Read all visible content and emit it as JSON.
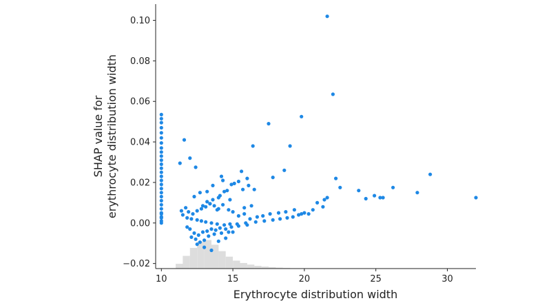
{
  "chart_data": {
    "type": "scatter",
    "xlabel": "Erythrocyte distribution width",
    "ylabel_lines": [
      "SHAP value for",
      "erythrocyte distribution width"
    ],
    "xlim": [
      9.6,
      32.0
    ],
    "ylim": [
      -0.0225,
      0.108
    ],
    "xticks": [
      10,
      15,
      20,
      25,
      30
    ],
    "yticks": [
      -0.02,
      0.0,
      0.02,
      0.04,
      0.06,
      0.08,
      0.1
    ],
    "ytick_labels": [
      "−0.02",
      "0.00",
      "0.02",
      "0.04",
      "0.06",
      "0.08",
      "0.10"
    ],
    "grid": false,
    "colors": {
      "points": "#1E88E5",
      "histogram": "#dddddd",
      "axis": "#222222"
    },
    "histogram": {
      "bin_edges": [
        11.0,
        11.5,
        12.0,
        12.5,
        13.0,
        13.5,
        14.0,
        14.5,
        15.0,
        15.5,
        16.0,
        16.5,
        17.0,
        17.5,
        18.0,
        18.5,
        19.0
      ],
      "heights": [
        0.06,
        0.16,
        0.26,
        0.34,
        0.36,
        0.3,
        0.22,
        0.15,
        0.1,
        0.07,
        0.05,
        0.035,
        0.025,
        0.018,
        0.012,
        0.008
      ]
    },
    "series": [
      {
        "x": [
          10,
          10,
          10,
          10,
          10,
          10,
          10,
          10,
          10,
          10,
          10,
          10,
          10,
          10,
          10,
          10,
          10,
          10,
          10,
          10,
          10,
          10,
          10,
          10,
          10,
          10,
          10,
          10,
          10,
          21.6,
          22.0,
          17.5,
          19.8,
          11.6,
          16.4,
          19.0,
          12.0,
          11.3,
          12.4,
          18.6,
          15.6,
          14.2,
          16.0,
          17.8,
          28.8,
          26.2,
          32.0,
          27.9,
          23.8,
          24.3,
          24.9,
          25.3,
          25.5,
          22.5,
          22.2,
          21.6,
          21.4,
          20.9,
          12.3,
          12.7,
          13.2,
          13.6,
          14.0,
          14.3,
          14.6,
          14.9,
          15.1,
          15.4,
          15.7,
          16.1,
          16.5,
          11.5,
          11.8,
          12.1,
          12.5,
          12.8,
          13.1,
          13.5,
          13.9,
          14.4,
          14.8,
          15.3,
          15.9,
          16.6,
          17.2,
          17.8,
          18.3,
          18.8,
          19.2,
          19.6,
          20.0,
          20.6,
          21.3,
          20.3,
          11.4,
          11.7,
          11.9,
          12.2,
          12.5,
          12.8,
          13.1,
          13.4,
          13.7,
          14.0,
          14.3,
          14.7,
          15.0,
          15.4,
          15.8,
          16.2,
          16.7,
          17.1,
          17.6,
          18.2,
          18.7,
          19.3,
          19.8,
          11.8,
          12.0,
          12.3,
          12.6,
          12.9,
          13.2,
          13.5,
          13.8,
          14.1,
          14.5,
          14.9,
          15.4,
          16.0,
          12.1,
          12.4,
          12.7,
          13.0,
          13.3,
          13.7,
          14.2,
          14.7,
          12.5,
          13.0,
          13.5,
          14.0,
          14.5,
          15.0,
          13.2,
          13.6,
          14.1,
          14.4,
          12.9,
          13.4,
          15.8,
          16.3,
          14.8,
          13.9
        ],
        "y": [
          0.0535,
          0.0515,
          0.0495,
          0.047,
          0.0445,
          0.042,
          0.0395,
          0.037,
          0.035,
          0.033,
          0.031,
          0.029,
          0.027,
          0.025,
          0.023,
          0.021,
          0.019,
          0.017,
          0.015,
          0.013,
          0.011,
          0.009,
          0.007,
          0.005,
          0.003,
          0.001,
          0.0,
          0.0025,
          0.0045,
          0.102,
          0.0635,
          0.049,
          0.0525,
          0.041,
          0.038,
          0.038,
          0.032,
          0.0295,
          0.0275,
          0.026,
          0.0255,
          0.023,
          0.022,
          0.0225,
          0.024,
          0.0175,
          0.0125,
          0.015,
          0.016,
          0.012,
          0.0135,
          0.0125,
          0.0125,
          0.0175,
          0.022,
          0.0125,
          0.0115,
          0.01,
          0.013,
          0.015,
          0.0155,
          0.0185,
          0.0125,
          0.021,
          0.016,
          0.019,
          0.0195,
          0.0205,
          0.0165,
          0.0185,
          0.0165,
          0.004,
          0.0025,
          0.002,
          0.0015,
          0.001,
          0.0005,
          0.0,
          -0.0005,
          -0.001,
          -0.0005,
          -0.0005,
          0.0,
          0.0005,
          0.001,
          0.0015,
          0.002,
          0.0025,
          0.003,
          0.004,
          0.005,
          0.0065,
          0.008,
          0.0045,
          0.006,
          0.0075,
          0.0055,
          0.0045,
          0.006,
          0.007,
          0.008,
          0.0095,
          0.0085,
          0.007,
          0.009,
          0.0065,
          0.0055,
          0.0035,
          0.0045,
          0.002,
          0.003,
          0.0035,
          0.0045,
          0.005,
          0.0055,
          0.0065,
          0.0045,
          -0.002,
          -0.003,
          -0.005,
          -0.006,
          -0.0045,
          -0.004,
          -0.003,
          -0.0035,
          -0.0025,
          -0.003,
          -0.002,
          -0.0015,
          -0.001,
          -0.007,
          -0.008,
          -0.0095,
          -0.0085,
          -0.0065,
          -0.0055,
          -0.005,
          -0.0045,
          -0.0105,
          -0.012,
          -0.0135,
          -0.009,
          -0.0075,
          -0.0045,
          0.0105,
          0.0115,
          0.0135,
          0.0155,
          0.0085,
          0.0095,
          0.0075,
          0.0085,
          0.0115,
          0.0065
        ]
      }
    ]
  }
}
